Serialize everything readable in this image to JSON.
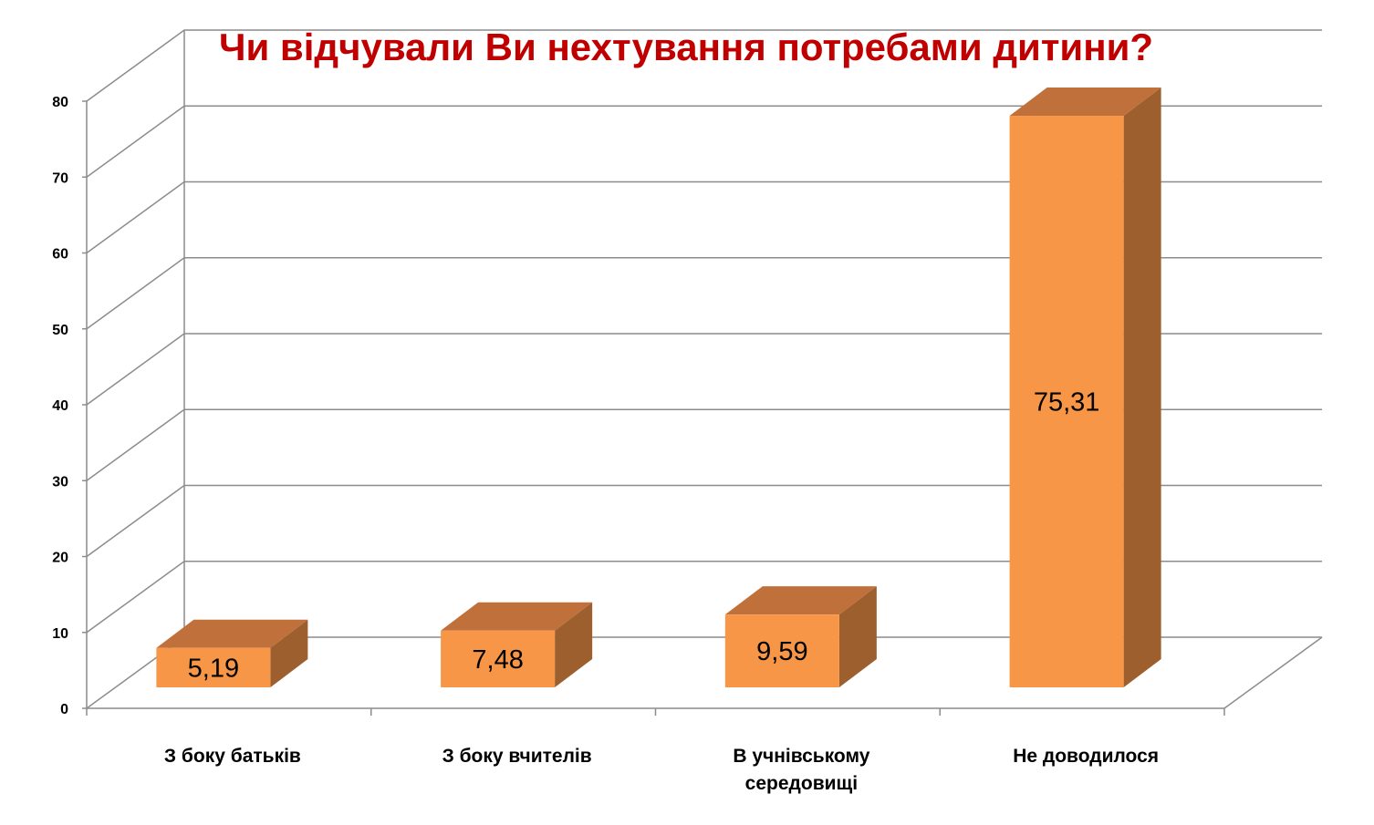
{
  "chart_data": {
    "type": "bar",
    "title": "Чи відчували Ви нехтування потребами дитини?",
    "xlabel": "",
    "ylabel": "",
    "categories": [
      [
        "З боку  батьків"
      ],
      [
        "З боку  вчителів"
      ],
      [
        "В учнівському",
        "середовищі"
      ],
      [
        "Не доводилося"
      ]
    ],
    "values": [
      5.19,
      7.48,
      9.59,
      75.31
    ],
    "data_labels": [
      "5,19",
      "7,48",
      "9,59",
      "75,31"
    ],
    "ylim": [
      0,
      80
    ],
    "yticks": [
      "0",
      "10",
      "20",
      "30",
      "40",
      "50",
      "60",
      "70",
      "80"
    ],
    "grid": true,
    "three_d": true,
    "legend": "none",
    "colors": {
      "bar_front": "#f79646",
      "bar_top": "#c0703a",
      "bar_side": "#9c5f2d",
      "grid": "#8c8c8c",
      "title": "#c00000"
    }
  }
}
